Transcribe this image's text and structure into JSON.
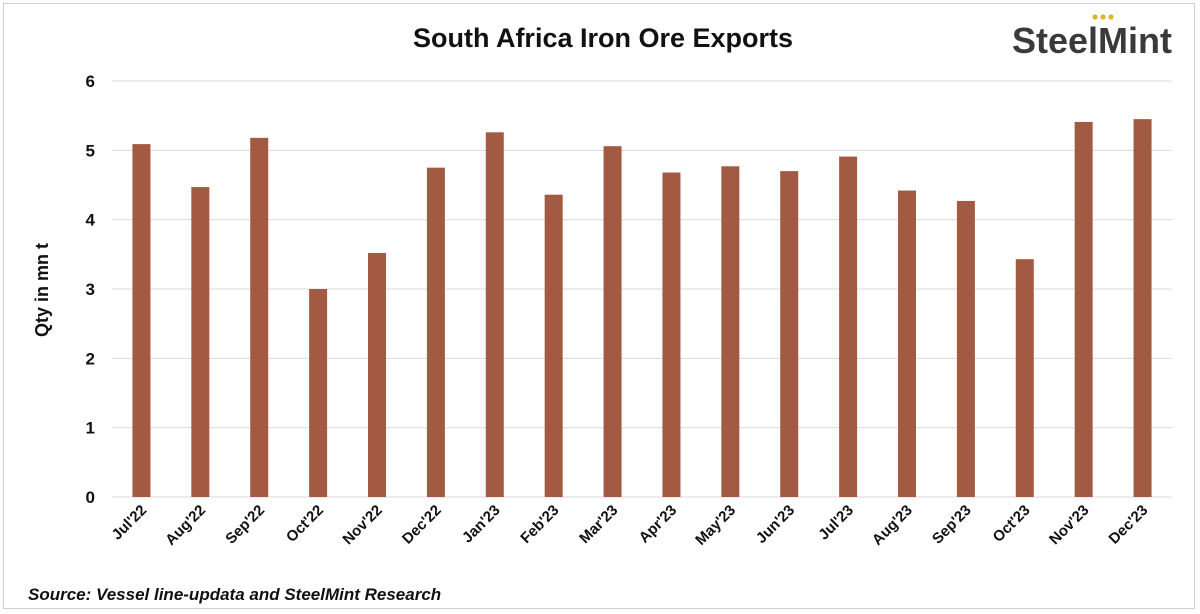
{
  "logo": {
    "text": "SteelMint",
    "dot_color": "#e0b12b"
  },
  "source": "Source: Vessel line-updata and SteelMint Research",
  "colors": {
    "bar": "#a35a42",
    "grid": "#d9d9d9",
    "text": "#111111"
  },
  "chart_data": {
    "type": "bar",
    "title": "South Africa Iron Ore Exports",
    "xlabel": "",
    "ylabel": "Qty in mn t",
    "ylim": [
      0,
      6
    ],
    "yticks": [
      "0",
      "1",
      "2",
      "3",
      "4",
      "5",
      "6"
    ],
    "grid": true,
    "categories": [
      "Jul'22",
      "Aug'22",
      "Sep'22",
      "Oct'22",
      "Nov'22",
      "Dec'22",
      "Jan'23",
      "Feb'23",
      "Mar'23",
      "Apr'23",
      "May'23",
      "Jun'23",
      "Jul'23",
      "Aug'23",
      "Sep'23",
      "Oct'23",
      "Nov'23",
      "Dec'23"
    ],
    "values": [
      5.09,
      4.47,
      5.18,
      3.0,
      3.52,
      4.75,
      5.26,
      4.36,
      5.06,
      4.68,
      4.77,
      4.7,
      4.91,
      4.42,
      4.27,
      3.43,
      5.41,
      5.45
    ]
  }
}
